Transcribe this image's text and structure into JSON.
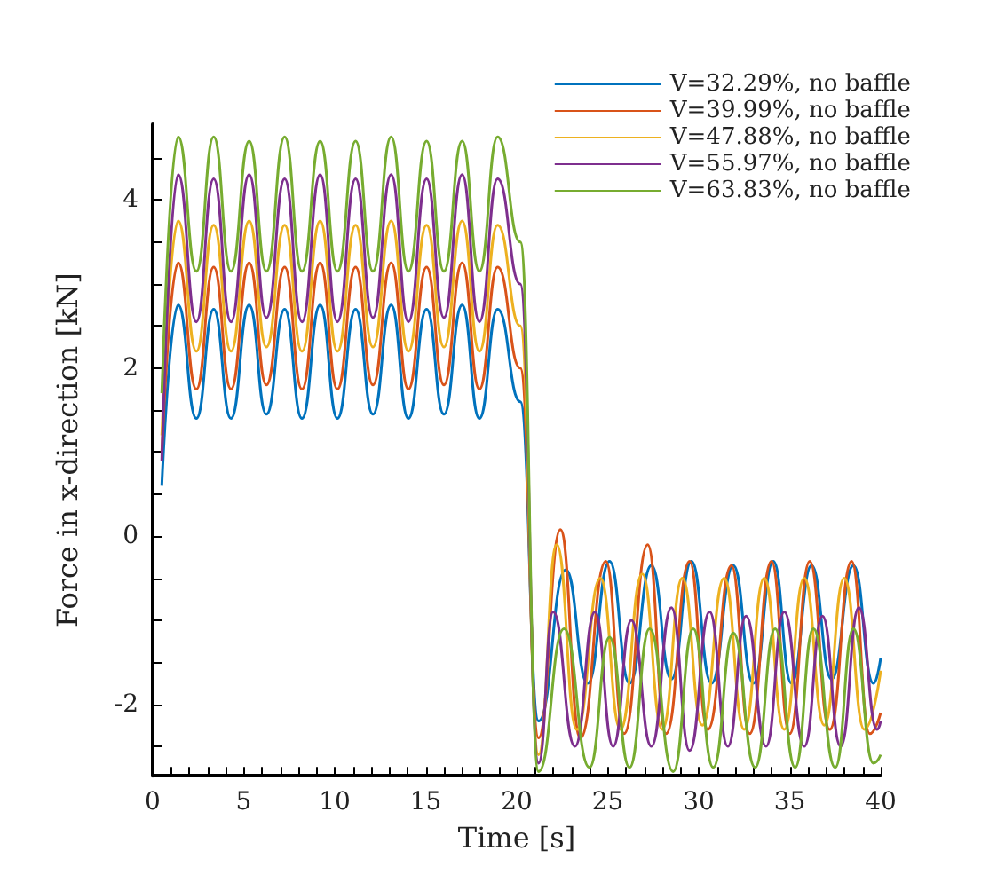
{
  "chart_data": {
    "type": "line",
    "xlabel": "Time [s]",
    "ylabel": "Force in x-direction [kN]",
    "xlim": [
      0,
      40
    ],
    "ylim": [
      -2.85,
      4.9
    ],
    "xticks": [
      0,
      {
        "value": 1,
        "label": null
      },
      {
        "value": 2,
        "label": null
      },
      {
        "value": 3,
        "label": null
      },
      {
        "value": 4,
        "label": null
      },
      5,
      {
        "value": 6,
        "label": null
      },
      {
        "value": 7,
        "label": null
      },
      {
        "value": 8,
        "label": null
      },
      {
        "value": 9,
        "label": null
      },
      10,
      {
        "value": 11,
        "label": null
      },
      {
        "value": 12,
        "label": null
      },
      {
        "value": 13,
        "label": null
      },
      {
        "value": 14,
        "label": null
      },
      15,
      {
        "value": 16,
        "label": null
      },
      {
        "value": 17,
        "label": null
      },
      {
        "value": 18,
        "label": null
      },
      {
        "value": 19,
        "label": null
      },
      20,
      {
        "value": 21,
        "label": null
      },
      {
        "value": 22,
        "label": null
      },
      {
        "value": 23,
        "label": null
      },
      {
        "value": 24,
        "label": null
      },
      25,
      {
        "value": 26,
        "label": null
      },
      {
        "value": 27,
        "label": null
      },
      {
        "value": 28,
        "label": null
      },
      {
        "value": 29,
        "label": null
      },
      30,
      {
        "value": 31,
        "label": null
      },
      {
        "value": 32,
        "label": null
      },
      {
        "value": 33,
        "label": null
      },
      {
        "value": 34,
        "label": null
      },
      35,
      {
        "value": 36,
        "label": null
      },
      {
        "value": 37,
        "label": null
      },
      {
        "value": 38,
        "label": null
      },
      {
        "value": 39,
        "label": null
      },
      40
    ],
    "yticks": [
      {
        "value": -2.5,
        "label": null
      },
      -2,
      {
        "value": -1.5,
        "label": null
      },
      {
        "value": -1,
        "label": null
      },
      {
        "value": -0.5,
        "label": null
      },
      0,
      {
        "value": 0.5,
        "label": null
      },
      {
        "value": 1,
        "label": null
      },
      {
        "value": 1.5,
        "label": null
      },
      2,
      {
        "value": 2.5,
        "label": null
      },
      {
        "value": 3,
        "label": null
      },
      {
        "value": 3.5,
        "label": null
      },
      4,
      {
        "value": 4.5,
        "label": null
      }
    ],
    "legend": "top right",
    "marker": "none",
    "series": [
      {
        "name": "V=32.29%, no baffle",
        "color": "#0072bd",
        "x": [
          0.5,
          1.4,
          2.4,
          3.35,
          4.3,
          5.3,
          6.25,
          7.25,
          8.2,
          9.2,
          10.15,
          11.15,
          12.1,
          13.1,
          14.05,
          15.05,
          16.0,
          17.0,
          17.95,
          18.95,
          20.2,
          21.2,
          22.7,
          23.9,
          25.1,
          26.2,
          27.4,
          28.5,
          29.6,
          30.7,
          31.9,
          33.0,
          34.1,
          35.1,
          36.2,
          37.3,
          38.5,
          39.6,
          40
        ],
        "values": [
          0.6,
          2.75,
          1.4,
          2.7,
          1.4,
          2.75,
          1.45,
          2.7,
          1.4,
          2.75,
          1.4,
          2.7,
          1.45,
          2.75,
          1.4,
          2.7,
          1.45,
          2.75,
          1.4,
          2.7,
          1.6,
          -2.2,
          -0.4,
          -1.75,
          -0.3,
          -1.75,
          -0.35,
          -1.7,
          -0.3,
          -1.75,
          -0.35,
          -1.75,
          -0.3,
          -1.75,
          -0.35,
          -1.7,
          -0.35,
          -1.75,
          -1.45
        ]
      },
      {
        "name": "V=39.99%, no baffle",
        "color": "#d95319",
        "x": [
          0.5,
          1.4,
          2.4,
          3.35,
          4.3,
          5.3,
          6.25,
          7.25,
          8.2,
          9.2,
          10.15,
          11.15,
          12.1,
          13.1,
          14.05,
          15.05,
          16.0,
          17.0,
          17.95,
          18.95,
          20.2,
          21.2,
          22.4,
          23.5,
          24.9,
          25.9,
          27.2,
          28.2,
          29.5,
          30.5,
          31.8,
          32.8,
          34.0,
          35.0,
          36.1,
          37.2,
          38.4,
          39.4,
          40
        ],
        "values": [
          1.0,
          3.25,
          1.75,
          3.2,
          1.75,
          3.25,
          1.8,
          3.2,
          1.75,
          3.25,
          1.75,
          3.2,
          1.8,
          3.25,
          1.75,
          3.2,
          1.8,
          3.25,
          1.75,
          3.2,
          2.0,
          -2.4,
          0.08,
          -2.4,
          -0.3,
          -2.35,
          -0.1,
          -2.35,
          -0.3,
          -2.3,
          -0.35,
          -2.35,
          -0.3,
          -2.35,
          -0.3,
          -2.3,
          -0.3,
          -2.35,
          -2.1
        ]
      },
      {
        "name": "V=47.88%, no baffle",
        "color": "#edb120",
        "x": [
          0.5,
          1.4,
          2.4,
          3.35,
          4.3,
          5.3,
          6.25,
          7.25,
          8.2,
          9.2,
          10.15,
          11.15,
          12.1,
          13.1,
          14.05,
          15.05,
          16.0,
          17.0,
          17.95,
          18.95,
          20.2,
          21.2,
          22.2,
          23.3,
          24.6,
          25.7,
          26.9,
          28.0,
          29.1,
          30.2,
          31.4,
          32.5,
          33.6,
          34.7,
          35.8,
          36.9,
          38.0,
          39.1,
          40
        ],
        "values": [
          1.2,
          3.75,
          2.2,
          3.7,
          2.2,
          3.75,
          2.25,
          3.7,
          2.2,
          3.75,
          2.2,
          3.7,
          2.25,
          3.75,
          2.2,
          3.7,
          2.25,
          3.75,
          2.2,
          3.7,
          2.5,
          -2.6,
          -0.1,
          -2.3,
          -0.5,
          -2.3,
          -0.45,
          -2.3,
          -0.5,
          -2.25,
          -0.5,
          -2.3,
          -0.5,
          -2.3,
          -0.5,
          -2.25,
          -0.5,
          -2.3,
          -1.6
        ]
      },
      {
        "name": "V=55.97%, no baffle",
        "color": "#7e2f8e",
        "x": [
          0.5,
          1.4,
          2.4,
          3.35,
          4.3,
          5.3,
          6.25,
          7.25,
          8.2,
          9.2,
          10.15,
          11.15,
          12.1,
          13.1,
          14.05,
          15.05,
          16.0,
          17.0,
          17.95,
          18.95,
          20.2,
          21.2,
          22.0,
          23.2,
          24.3,
          25.3,
          26.3,
          27.4,
          28.5,
          29.5,
          30.6,
          31.6,
          32.6,
          33.7,
          34.7,
          35.8,
          36.8,
          37.8,
          38.8,
          39.8,
          40
        ],
        "values": [
          0.9,
          4.3,
          2.55,
          4.25,
          2.55,
          4.3,
          2.6,
          4.25,
          2.55,
          4.3,
          2.55,
          4.25,
          2.6,
          4.3,
          2.55,
          4.25,
          2.6,
          4.3,
          2.55,
          4.25,
          3.0,
          -2.7,
          -0.9,
          -2.5,
          -0.9,
          -2.5,
          -1.0,
          -2.5,
          -0.85,
          -2.55,
          -0.9,
          -2.5,
          -0.95,
          -2.5,
          -0.9,
          -2.5,
          -0.95,
          -2.5,
          -0.85,
          -2.3,
          -2.2
        ]
      },
      {
        "name": "V=63.83%, no baffle",
        "color": "#77ac30",
        "x": [
          0.5,
          1.4,
          2.4,
          3.35,
          4.3,
          5.3,
          6.25,
          7.25,
          8.2,
          9.2,
          10.15,
          11.15,
          12.1,
          13.1,
          14.05,
          15.05,
          16.0,
          17.0,
          17.95,
          18.95,
          20.2,
          21.2,
          22.6,
          24.0,
          25.1,
          26.2,
          27.3,
          28.6,
          29.7,
          30.8,
          31.9,
          33.1,
          34.2,
          35.3,
          36.3,
          37.5,
          38.5,
          39.6,
          40
        ],
        "values": [
          1.7,
          4.75,
          3.15,
          4.75,
          3.15,
          4.7,
          3.15,
          4.75,
          3.15,
          4.7,
          3.15,
          4.7,
          3.15,
          4.75,
          3.15,
          4.7,
          3.15,
          4.7,
          3.15,
          4.75,
          3.5,
          -2.8,
          -1.1,
          -2.75,
          -1.2,
          -2.75,
          -1.1,
          -2.8,
          -1.1,
          -2.75,
          -1.15,
          -2.75,
          -1.1,
          -2.75,
          -1.1,
          -2.75,
          -1.1,
          -2.7,
          -2.6
        ]
      }
    ]
  }
}
